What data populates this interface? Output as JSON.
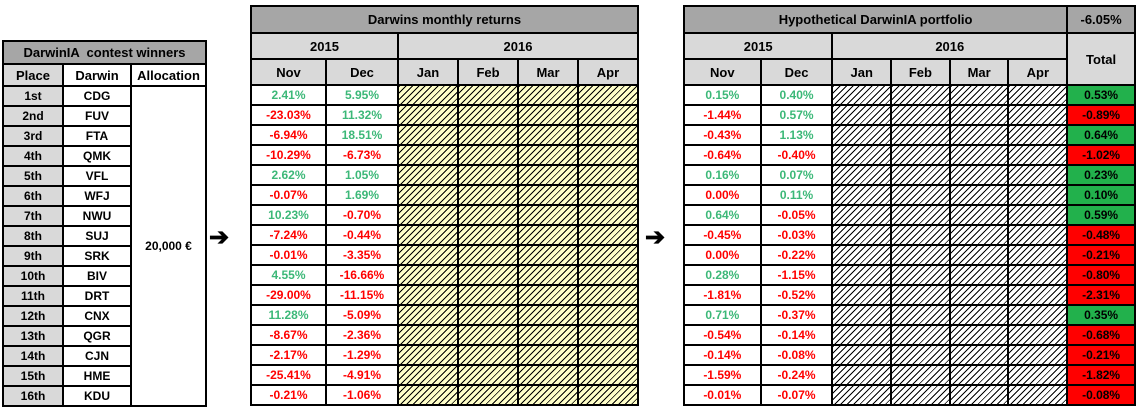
{
  "arrows": {
    "glyph": "➔"
  },
  "colors": {
    "title_bg": "#a6a6a6",
    "header_bg": "#d9d9d9",
    "green_text": "#3cb878",
    "red_text": "#ff0000",
    "green_bg": "#22b14c",
    "red_bg": "#ff0000",
    "hatch_bg_middle": "#ffffc9",
    "hatch_bg_right": "#ffffff"
  },
  "left_table": {
    "title": "DarwinIA  contest winners",
    "columns": [
      "Place",
      "Darwin",
      "Allocation"
    ],
    "allocation": "20,000 €",
    "rows": [
      {
        "place": "1st",
        "darwin": "CDG"
      },
      {
        "place": "2nd",
        "darwin": "FUV"
      },
      {
        "place": "3rd",
        "darwin": "FTA"
      },
      {
        "place": "4th",
        "darwin": "QMK"
      },
      {
        "place": "5th",
        "darwin": "VFL"
      },
      {
        "place": "6th",
        "darwin": "WFJ"
      },
      {
        "place": "7th",
        "darwin": "NWU"
      },
      {
        "place": "8th",
        "darwin": "SUJ"
      },
      {
        "place": "9th",
        "darwin": "SRK"
      },
      {
        "place": "10th",
        "darwin": "BIV"
      },
      {
        "place": "11th",
        "darwin": "DRT"
      },
      {
        "place": "12th",
        "darwin": "CNX"
      },
      {
        "place": "13th",
        "darwin": "QGR"
      },
      {
        "place": "14th",
        "darwin": "CJN"
      },
      {
        "place": "15th",
        "darwin": "HME"
      },
      {
        "place": "16th",
        "darwin": "KDU"
      }
    ]
  },
  "middle_table": {
    "title": "Darwins monthly returns",
    "years": [
      "2015",
      "2016"
    ],
    "months": [
      "Nov",
      "Dec",
      "Jan",
      "Feb",
      "Mar",
      "Apr"
    ],
    "rows": [
      {
        "nov": "2.41%",
        "dec": "5.95%"
      },
      {
        "nov": "-23.03%",
        "dec": "11.32%"
      },
      {
        "nov": "-6.94%",
        "dec": "18.51%"
      },
      {
        "nov": "-10.29%",
        "dec": "-6.73%"
      },
      {
        "nov": "2.62%",
        "dec": "1.05%"
      },
      {
        "nov": "-0.07%",
        "dec": "1.69%"
      },
      {
        "nov": "10.23%",
        "dec": "-0.70%"
      },
      {
        "nov": "-7.24%",
        "dec": "-0.44%"
      },
      {
        "nov": "-0.01%",
        "dec": "-3.35%"
      },
      {
        "nov": "4.55%",
        "dec": "-16.66%"
      },
      {
        "nov": "-29.00%",
        "dec": "-11.15%"
      },
      {
        "nov": "11.28%",
        "dec": "-5.09%"
      },
      {
        "nov": "-8.67%",
        "dec": "-2.36%"
      },
      {
        "nov": "-2.17%",
        "dec": "-1.29%"
      },
      {
        "nov": "-25.41%",
        "dec": "-4.91%"
      },
      {
        "nov": "-0.21%",
        "dec": "-1.06%"
      }
    ]
  },
  "right_table": {
    "title": "Hypothetical DarwinIA portfolio",
    "total_top": "-6.05%",
    "total_header": "Total",
    "years": [
      "2015",
      "2016"
    ],
    "months": [
      "Nov",
      "Dec",
      "Jan",
      "Feb",
      "Mar",
      "Apr"
    ],
    "rows": [
      {
        "nov": "0.15%",
        "dec": "0.40%",
        "total": "0.53%"
      },
      {
        "nov": "-1.44%",
        "dec": "0.57%",
        "total": "-0.89%"
      },
      {
        "nov": "-0.43%",
        "dec": "1.13%",
        "total": "0.64%"
      },
      {
        "nov": "-0.64%",
        "dec": "-0.40%",
        "total": "-1.02%"
      },
      {
        "nov": "0.16%",
        "dec": "0.07%",
        "total": "0.23%"
      },
      {
        "nov": "0.00%",
        "dec": "0.11%",
        "total": "0.10%"
      },
      {
        "nov": "0.64%",
        "dec": "-0.05%",
        "total": "0.59%"
      },
      {
        "nov": "-0.45%",
        "dec": "-0.03%",
        "total": "-0.48%"
      },
      {
        "nov": "0.00%",
        "dec": "-0.22%",
        "total": "-0.21%"
      },
      {
        "nov": "0.28%",
        "dec": "-1.15%",
        "total": "-0.80%"
      },
      {
        "nov": "-1.81%",
        "dec": "-0.52%",
        "total": "-2.31%"
      },
      {
        "nov": "0.71%",
        "dec": "-0.37%",
        "total": "0.35%"
      },
      {
        "nov": "-0.54%",
        "dec": "-0.14%",
        "total": "-0.68%"
      },
      {
        "nov": "-0.14%",
        "dec": "-0.08%",
        "total": "-0.21%"
      },
      {
        "nov": "-1.59%",
        "dec": "-0.24%",
        "total": "-1.82%"
      },
      {
        "nov": "-0.01%",
        "dec": "-0.07%",
        "total": "-0.08%"
      }
    ]
  }
}
